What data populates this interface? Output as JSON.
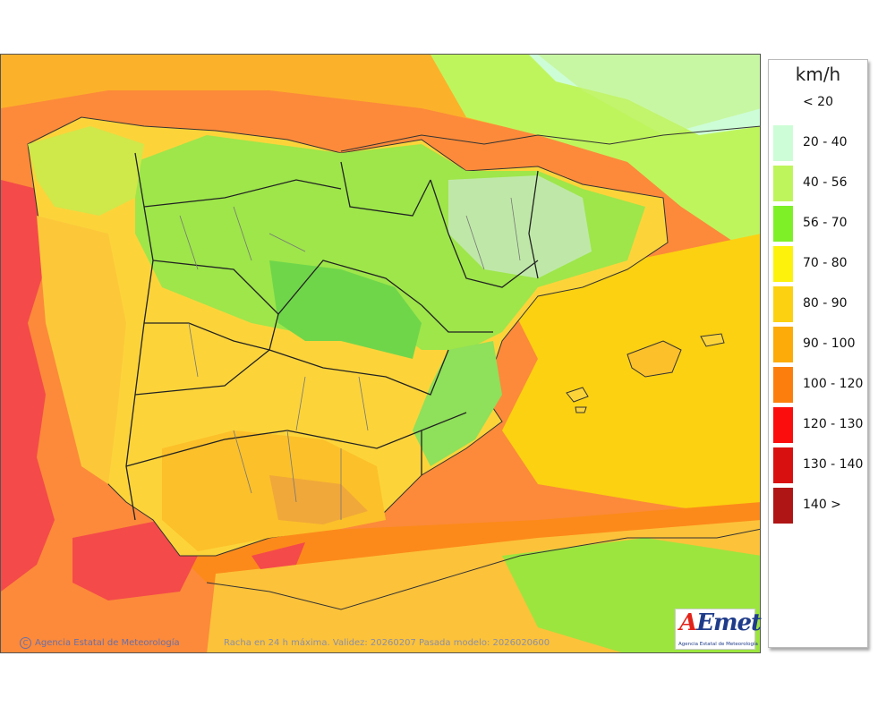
{
  "legend": {
    "title": "km/h",
    "items": [
      {
        "label": "< 20",
        "color": "#ffffff"
      },
      {
        "label": "20 - 40",
        "color": "#cdfdd6"
      },
      {
        "label": "40 - 56",
        "color": "#bff55c"
      },
      {
        "label": "56 - 70",
        "color": "#7ef028"
      },
      {
        "label": "70 - 80",
        "color": "#fcf20c"
      },
      {
        "label": "80 - 90",
        "color": "#fcd111"
      },
      {
        "label": "90 - 100",
        "color": "#fcab08"
      },
      {
        "label": "100 - 120",
        "color": "#fc7f0d"
      },
      {
        "label": "120 - 130",
        "color": "#fc0d0d"
      },
      {
        "label": "130 - 140",
        "color": "#d91010"
      },
      {
        "label": "140 >",
        "color": "#b01515"
      }
    ]
  },
  "footer": {
    "copyright_symbol": "C",
    "credit": "Agencia Estatal de Meteorología",
    "validity": "Racha en 24 h máxima. Validez: 20260207 Pasada modelo: 2026020600"
  },
  "logo": {
    "text_a": "A",
    "text_rest": "Emet",
    "subtitle": "Agencia Estatal de Meteorología"
  }
}
